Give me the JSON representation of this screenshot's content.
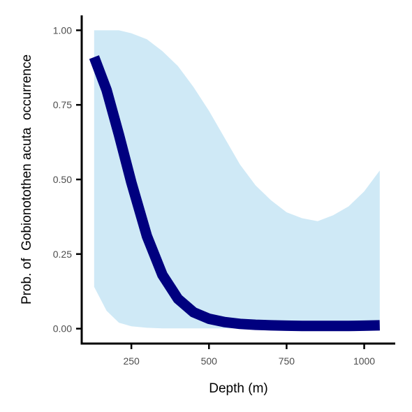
{
  "chart_data": {
    "type": "line",
    "xlabel": "Depth (m)",
    "ylabel": "Prob. of  Gobionotothen acuta  occurrence",
    "xlim": [
      90,
      1100
    ],
    "ylim": [
      -0.05,
      1.05
    ],
    "x_ticks": [
      250,
      500,
      750,
      1000
    ],
    "x_tick_labels": [
      "250",
      "500",
      "750",
      "1000"
    ],
    "y_ticks": [
      0,
      0.25,
      0.5,
      0.75,
      1
    ],
    "y_tick_labels": [
      "0.00",
      "0.25",
      "0.50",
      "0.75",
      "1.00"
    ],
    "grid": false,
    "legend": "none",
    "series": [
      {
        "x": [
          130,
          170,
          210,
          250,
          300,
          350,
          400,
          450,
          500,
          550,
          600,
          650,
          700,
          750,
          800,
          850,
          900,
          950,
          1000,
          1050
        ],
        "values": [
          0.91,
          0.8,
          0.65,
          0.49,
          0.31,
          0.18,
          0.1,
          0.055,
          0.033,
          0.022,
          0.016,
          0.013,
          0.011,
          0.01,
          0.009,
          0.009,
          0.009,
          0.009,
          0.01,
          0.011
        ],
        "lower": [
          0.14,
          0.06,
          0.02,
          0.008,
          0.003,
          0.001,
          0.001,
          0.001,
          0.001,
          0.001,
          0.001,
          0.001,
          0.001,
          0.001,
          0.001,
          0.001,
          0.001,
          0.002,
          0.002,
          0.003
        ],
        "upper": [
          1.0,
          1.0,
          1.0,
          0.99,
          0.97,
          0.93,
          0.88,
          0.81,
          0.73,
          0.64,
          0.55,
          0.48,
          0.43,
          0.39,
          0.37,
          0.36,
          0.38,
          0.41,
          0.46,
          0.53
        ]
      }
    ],
    "colors": {
      "line": "#00007f",
      "ribbon": "#cfe9f6",
      "axis": "#000000",
      "tick_label": "#4d4d4d"
    }
  }
}
